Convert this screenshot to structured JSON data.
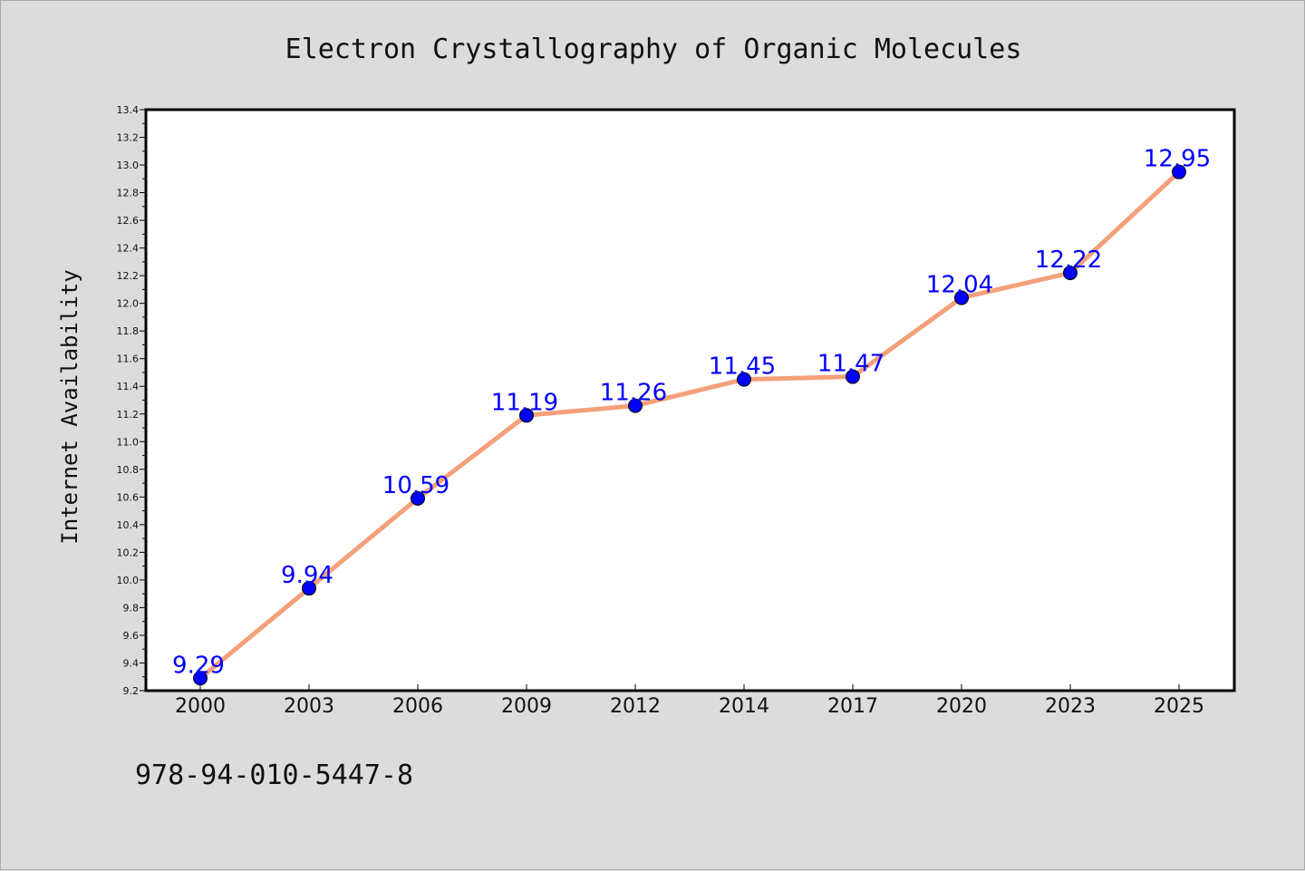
{
  "chart_data": {
    "type": "line",
    "title": "Electron Crystallography of Organic Molecules",
    "xlabel": "",
    "ylabel": "Internet Availability",
    "categories": [
      "2000",
      "2003",
      "2006",
      "2009",
      "2012",
      "2014",
      "2017",
      "2020",
      "2023",
      "2025"
    ],
    "series": [
      {
        "values": [
          9.29,
          9.94,
          10.59,
          11.19,
          11.26,
          11.45,
          11.47,
          12.04,
          12.22,
          12.95
        ]
      }
    ],
    "data_labels": [
      "9.29",
      "9.94",
      "10.59",
      "11.19",
      "11.26",
      "11.45",
      "11.47",
      "12.04",
      "12.22",
      "12.95"
    ],
    "ylim": [
      9.2,
      13.4
    ],
    "yticks": [
      "9.2",
      "9.4",
      "9.6",
      "9.8",
      "10.0",
      "10.2",
      "10.4",
      "10.6",
      "10.8",
      "11.0",
      "11.2",
      "11.4",
      "11.6",
      "11.8",
      "12.0",
      "12.2",
      "12.4",
      "12.6",
      "12.8",
      "13.0",
      "13.2",
      "13.4"
    ],
    "grid": false,
    "legend": "none",
    "colors": {
      "line": "#f4a07a",
      "marker": "#0000ff",
      "label": "#0000ff",
      "background": "#dcdcdc",
      "plot_area": "#ffffff"
    }
  },
  "footer_text": "978-94-010-5447-8"
}
